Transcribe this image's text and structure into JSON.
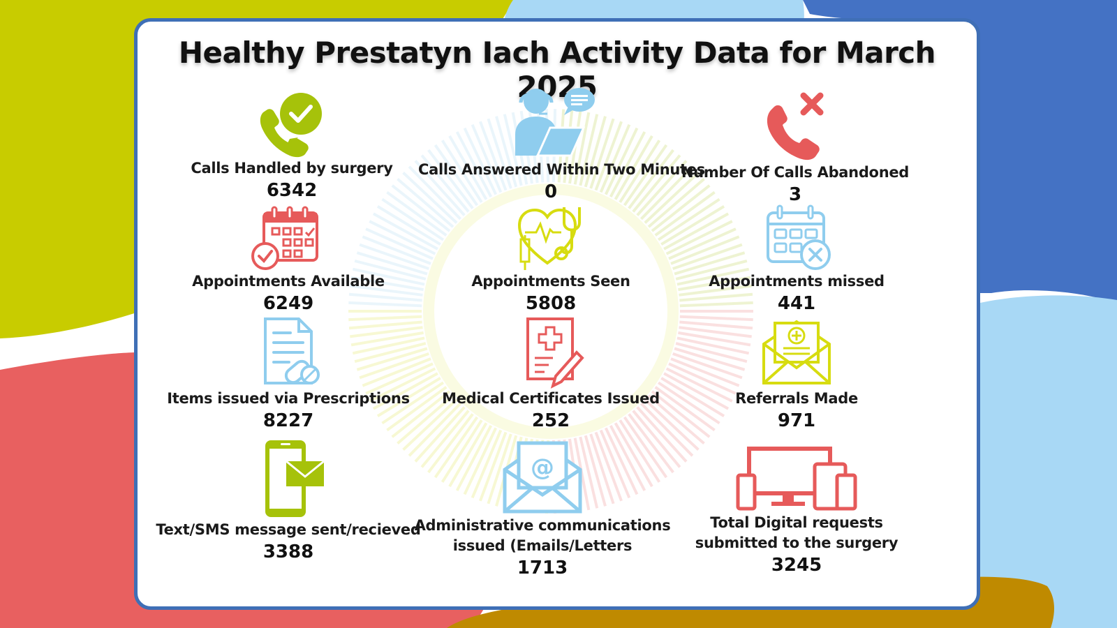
{
  "title": "Healthy Prestatyn Iach Activity Data for March 2025",
  "colors": {
    "green": "#a6c20a",
    "blue": "#8fcdee",
    "red": "#e65a5a",
    "yellow": "#d7dc10",
    "frame": "#3f6fb6"
  },
  "stats": [
    {
      "icon": "phone-check-icon",
      "label": "Calls Handled by surgery",
      "value": "6342"
    },
    {
      "icon": "call-center-agent-icon",
      "label": "Calls Answered Within Two Minutes",
      "value": "0"
    },
    {
      "icon": "phone-missed-icon",
      "label": "Number Of Calls Abandoned",
      "value": "3"
    },
    {
      "icon": "calendar-check-icon",
      "label": "Appointments Available",
      "value": "6249"
    },
    {
      "icon": "stethoscope-heart-icon",
      "label": "Appointments Seen",
      "value": "5808"
    },
    {
      "icon": "calendar-cancel-icon",
      "label": "Appointments missed",
      "value": "441"
    },
    {
      "icon": "prescription-pills-icon",
      "label": "Items issued via Prescriptions",
      "value": "8227"
    },
    {
      "icon": "medical-certificate-icon",
      "label": "Medical Certificates Issued",
      "value": "252"
    },
    {
      "icon": "referral-envelope-icon",
      "label": "Referrals Made",
      "value": "971"
    },
    {
      "icon": "sms-phone-icon",
      "label": "Text/SMS message sent/recieved",
      "value": "3388"
    },
    {
      "icon": "email-envelope-icon",
      "label": "Administrative communications",
      "label2": "issued (Emails/Letters",
      "value": "1713"
    },
    {
      "icon": "digital-devices-icon",
      "label": "Total Digital requests",
      "label2": "submitted to the surgery",
      "value": "3245"
    }
  ]
}
